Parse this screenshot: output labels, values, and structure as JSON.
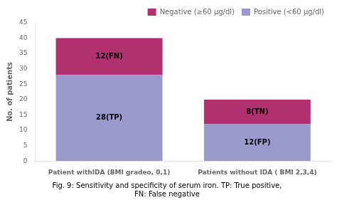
{
  "chart_data": {
    "type": "bar",
    "stacked": true,
    "categories": [
      "Patient withIDA (BMI gradeo, 0,1)",
      "Patients without IDA ( BMI 2,3,4)"
    ],
    "series": [
      {
        "name": "Positive (<60 µg/dl)",
        "color": "#9999cc",
        "values": [
          28,
          12
        ],
        "value_labels": [
          "28(TP)",
          "12(FP)"
        ]
      },
      {
        "name": "Negative (≥60 µg/dl)",
        "color": "#b03070",
        "values": [
          12,
          8
        ],
        "value_labels": [
          "12(FN)",
          "8(TN)"
        ]
      }
    ],
    "ylabel": "No. of patients",
    "ylim": [
      0,
      45
    ],
    "yticks": [
      0,
      5,
      10,
      15,
      20,
      25,
      30,
      35,
      40,
      45
    ],
    "data_labels": true,
    "legend": "upper right",
    "grid": false,
    "annotations": [
      "Fig. 9: Sensitivity and specificity of serum iron. TP: True positive,",
      "FN: False negative"
    ]
  }
}
